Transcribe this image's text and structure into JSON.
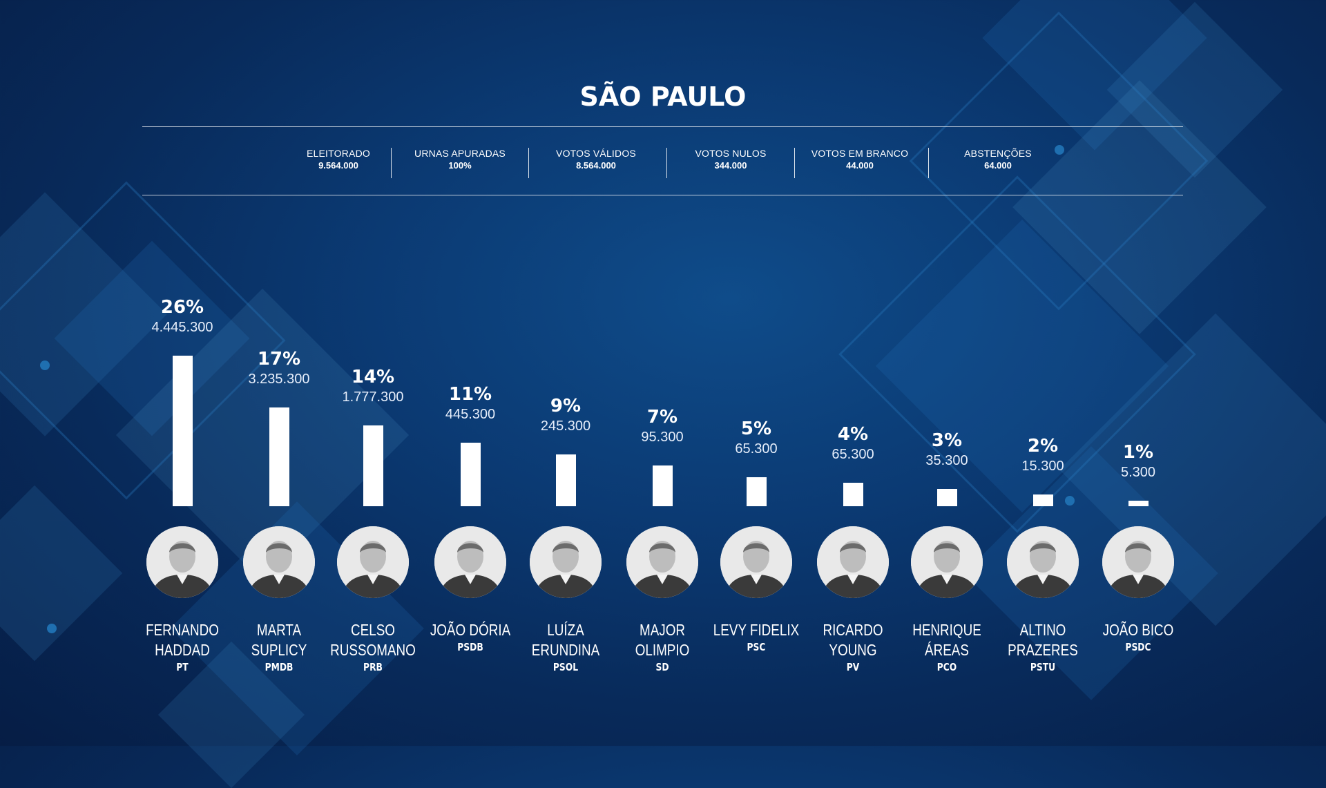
{
  "title": "SÃO PAULO",
  "stats": [
    {
      "label": "ELEITORADO",
      "value": "9.564.000"
    },
    {
      "label": "URNAS APURADAS",
      "value": "100%"
    },
    {
      "label": "VOTOS VÁLIDOS",
      "value": "8.564.000"
    },
    {
      "label": "VOTOS NULOS",
      "value": "344.000"
    },
    {
      "label": "VOTOS EM BRANCO",
      "value": "44.000"
    },
    {
      "label": "ABSTENÇÕES",
      "value": "64.000"
    }
  ],
  "colors": {
    "background": "#0b3a73",
    "bars": "#ffffff",
    "accent": "#1f6fb0"
  },
  "chart_data": {
    "type": "bar",
    "categories": [
      "FERNANDO HADDAD",
      "MARTA SUPLICY",
      "CELSO RUSSOMANO",
      "JOÃO DÓRIA",
      "LUÍZA ERUNDINA",
      "MAJOR OLIMPIO",
      "LEVY FIDELIX",
      "RICARDO YOUNG",
      "HENRIQUE ÁREAS",
      "ALTINO PRAZERES",
      "JOÃO BICO"
    ],
    "candidates": [
      {
        "name_lines": [
          "FERNANDO",
          "HADDAD"
        ],
        "party": "PT",
        "percent": 26,
        "percent_label": "26%",
        "votes": "4.445.300"
      },
      {
        "name_lines": [
          "MARTA SUPLICY"
        ],
        "party": "PMDB",
        "percent": 17,
        "percent_label": "17%",
        "votes": "3.235.300"
      },
      {
        "name_lines": [
          "CELSO",
          "RUSSOMANO"
        ],
        "party": "PRB",
        "percent": 14,
        "percent_label": "14%",
        "votes": "1.777.300"
      },
      {
        "name_lines": [
          "JOÃO DÓRIA"
        ],
        "party": "PSDB",
        "percent": 11,
        "percent_label": "11%",
        "votes": "445.300"
      },
      {
        "name_lines": [
          "LUÍZA",
          "ERUNDINA"
        ],
        "party": "PSOL",
        "percent": 9,
        "percent_label": "9%",
        "votes": "245.300"
      },
      {
        "name_lines": [
          "MAJOR OLIMPIO"
        ],
        "party": "SD",
        "percent": 7,
        "percent_label": "7%",
        "votes": "95.300"
      },
      {
        "name_lines": [
          "LEVY FIDELIX"
        ],
        "party": "PSC",
        "percent": 5,
        "percent_label": "5%",
        "votes": "65.300"
      },
      {
        "name_lines": [
          "RICARDO",
          "YOUNG"
        ],
        "party": "PV",
        "percent": 4,
        "percent_label": "4%",
        "votes": "65.300"
      },
      {
        "name_lines": [
          "HENRIQUE",
          "ÁREAS"
        ],
        "party": "PCO",
        "percent": 3,
        "percent_label": "3%",
        "votes": "35.300"
      },
      {
        "name_lines": [
          "ALTINO",
          "PRAZERES"
        ],
        "party": "PSTU",
        "percent": 2,
        "percent_label": "2%",
        "votes": "15.300"
      },
      {
        "name_lines": [
          "JOÃO BICO"
        ],
        "party": "PSDC",
        "percent": 1,
        "percent_label": "1%",
        "votes": "5.300"
      }
    ],
    "values": [
      26,
      17,
      14,
      11,
      9,
      7,
      5,
      4,
      3,
      2,
      1
    ],
    "ylim": [
      0,
      26
    ],
    "grid": false,
    "legend": "none"
  }
}
